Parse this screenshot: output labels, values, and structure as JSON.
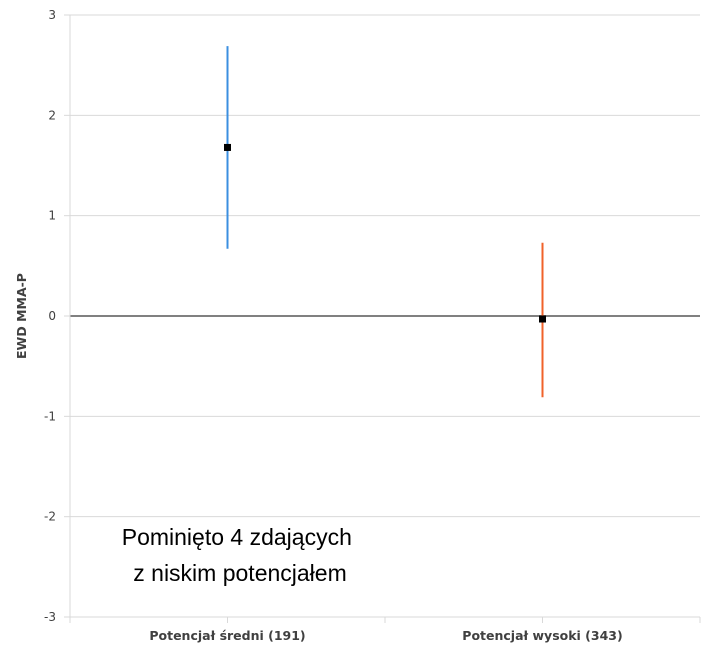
{
  "chart_data": {
    "type": "scatter",
    "categories": [
      "Potencjał średni (191)",
      "Potencjał wysoki (343)"
    ],
    "points": [
      {
        "category": "Potencjał średni (191)",
        "value": 1.68,
        "lower": 0.67,
        "upper": 2.69,
        "color": "#3b8fe0"
      },
      {
        "category": "Potencjał wysoki (343)",
        "value": -0.03,
        "lower": -0.81,
        "upper": 0.73,
        "color": "#f0622a"
      }
    ],
    "ylabel": "EWD MMA-P",
    "xlabel": "",
    "ylim": [
      -3,
      3
    ],
    "yticks": [
      "3",
      "2",
      "1",
      "0",
      "-1",
      "-2",
      "-3"
    ],
    "grid": true,
    "annotation": [
      "Pominięto 4 zdających",
      "z niskim potencjałem"
    ],
    "colors": {
      "grid": "#d9d9d9",
      "zero_line": "#808080",
      "marker": "#000000"
    }
  }
}
